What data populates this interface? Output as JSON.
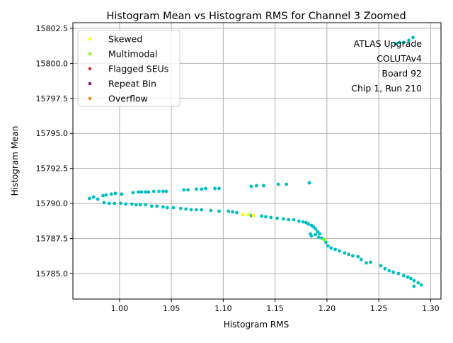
{
  "chart_data": {
    "type": "scatter",
    "title": "Histogram Mean vs Histogram RMS for Channel 3 Zoomed",
    "xlabel": "Histogram RMS",
    "ylabel": "Histogram Mean",
    "xlim": [
      0.955,
      1.31
    ],
    "ylim": [
      15783.18,
      15802.9
    ],
    "xticks": [
      1.0,
      1.05,
      1.1,
      1.15,
      1.2,
      1.25,
      1.3
    ],
    "xtick_labels": [
      "1.00",
      "1.05",
      "1.10",
      "1.15",
      "1.20",
      "1.25",
      "1.30"
    ],
    "yticks": [
      15785.0,
      15787.5,
      15790.0,
      15792.5,
      15795.0,
      15797.5,
      15800.0,
      15802.5
    ],
    "ytick_labels": [
      "15785.0",
      "15787.5",
      "15790.0",
      "15792.5",
      "15795.0",
      "15797.5",
      "15800.0",
      "15802.5"
    ],
    "grid": true,
    "legend_position": "top-left",
    "annotation": [
      "ATLAS Upgrade",
      "COLUTAv4",
      "Board 92",
      "Chip 1, Run 210"
    ],
    "legend": [
      {
        "name": "Skewed",
        "color": "#ffff00"
      },
      {
        "name": "Multimodal",
        "color": "#7cfc00"
      },
      {
        "name": "Flagged SEUs",
        "color": "#d62728"
      },
      {
        "name": "Repeat Bin",
        "color": "#800080"
      },
      {
        "name": "Overflow",
        "color": "#ff7f0e"
      }
    ],
    "default_color": "#00bfbf",
    "series": [
      {
        "category": "normal",
        "color": "#00bfbf",
        "points": [
          [
            0.971,
            15790.36
          ],
          [
            0.975,
            15790.46
          ],
          [
            0.979,
            15790.31
          ],
          [
            0.984,
            15790.56
          ],
          [
            0.987,
            15790.61
          ],
          [
            0.992,
            15790.67
          ],
          [
            0.996,
            15790.72
          ],
          [
            1.002,
            15790.67
          ],
          [
            1.013,
            15790.77
          ],
          [
            1.018,
            15790.82
          ],
          [
            1.021,
            15790.82
          ],
          [
            1.025,
            15790.82
          ],
          [
            1.028,
            15790.82
          ],
          [
            1.033,
            15790.87
          ],
          [
            1.038,
            15790.87
          ],
          [
            1.042,
            15790.87
          ],
          [
            1.045,
            15790.87
          ],
          [
            1.062,
            15790.97
          ],
          [
            1.066,
            15790.97
          ],
          [
            1.074,
            15791.02
          ],
          [
            1.079,
            15791.02
          ],
          [
            1.083,
            15791.07
          ],
          [
            1.092,
            15791.07
          ],
          [
            1.096,
            15791.07
          ],
          [
            1.127,
            15791.22
          ],
          [
            1.132,
            15791.27
          ],
          [
            1.139,
            15791.27
          ],
          [
            1.153,
            15791.37
          ],
          [
            1.161,
            15791.37
          ],
          [
            1.183,
            15791.47
          ],
          [
            0.985,
            15790.06
          ],
          [
            0.99,
            15790.01
          ],
          [
            0.995,
            15790.01
          ],
          [
            1.001,
            15790.01
          ],
          [
            1.006,
            15789.96
          ],
          [
            1.012,
            15789.96
          ],
          [
            1.016,
            15789.91
          ],
          [
            1.02,
            15789.91
          ],
          [
            1.025,
            15789.91
          ],
          [
            1.031,
            15789.81
          ],
          [
            1.036,
            15789.81
          ],
          [
            1.042,
            15789.75
          ],
          [
            1.046,
            15789.7
          ],
          [
            1.052,
            15789.7
          ],
          [
            1.059,
            15789.65
          ],
          [
            1.064,
            15789.6
          ],
          [
            1.069,
            15789.55
          ],
          [
            1.074,
            15789.55
          ],
          [
            1.079,
            15789.55
          ],
          [
            1.088,
            15789.5
          ],
          [
            1.096,
            15789.45
          ],
          [
            1.105,
            15789.45
          ],
          [
            1.109,
            15789.4
          ],
          [
            1.113,
            15789.35
          ],
          [
            1.127,
            15789.15
          ],
          [
            1.137,
            15789.1
          ],
          [
            1.141,
            15789.05
          ],
          [
            1.146,
            15789.0
          ],
          [
            1.152,
            15788.95
          ],
          [
            1.158,
            15788.9
          ],
          [
            1.163,
            15788.84
          ],
          [
            1.168,
            15788.84
          ],
          [
            1.173,
            15788.74
          ],
          [
            1.177,
            15788.69
          ],
          [
            1.18,
            15788.64
          ],
          [
            1.182,
            15788.54
          ],
          [
            1.185,
            15788.44
          ],
          [
            1.187,
            15788.34
          ],
          [
            1.189,
            15788.19
          ],
          [
            1.184,
            15787.83
          ],
          [
            1.185,
            15787.68
          ],
          [
            1.189,
            15787.78
          ],
          [
            1.191,
            15787.98
          ],
          [
            1.192,
            15787.58
          ],
          [
            1.193,
            15787.83
          ],
          [
            1.195,
            15787.53
          ],
          [
            1.199,
            15787.23
          ],
          [
            1.201,
            15786.97
          ],
          [
            1.204,
            15786.82
          ],
          [
            1.208,
            15786.72
          ],
          [
            1.212,
            15786.62
          ],
          [
            1.217,
            15786.47
          ],
          [
            1.221,
            15786.37
          ],
          [
            1.225,
            15786.26
          ],
          [
            1.23,
            15786.21
          ],
          [
            1.233,
            15786.01
          ],
          [
            1.238,
            15785.76
          ],
          [
            1.242,
            15785.81
          ],
          [
            1.252,
            15785.56
          ],
          [
            1.256,
            15785.35
          ],
          [
            1.26,
            15785.2
          ],
          [
            1.264,
            15785.1
          ],
          [
            1.269,
            15785.0
          ],
          [
            1.274,
            15784.85
          ],
          [
            1.278,
            15784.75
          ],
          [
            1.281,
            15784.65
          ],
          [
            1.284,
            15784.49
          ],
          [
            1.288,
            15784.34
          ],
          [
            1.291,
            15784.19
          ],
          [
            1.284,
            15784.09
          ],
          [
            1.266,
            15801.39
          ],
          [
            1.27,
            15801.49
          ],
          [
            1.274,
            15801.49
          ],
          [
            1.279,
            15801.64
          ],
          [
            1.283,
            15801.84
          ]
        ]
      },
      {
        "category": "Skewed",
        "color": "#ffff00",
        "points": [
          [
            1.119,
            15789.2
          ],
          [
            1.124,
            15789.2
          ],
          [
            1.129,
            15789.15
          ]
        ]
      },
      {
        "category": "Multimodal",
        "color": "#7cfc00",
        "points": [
          [
            1.197,
            15787.43
          ]
        ]
      }
    ]
  }
}
